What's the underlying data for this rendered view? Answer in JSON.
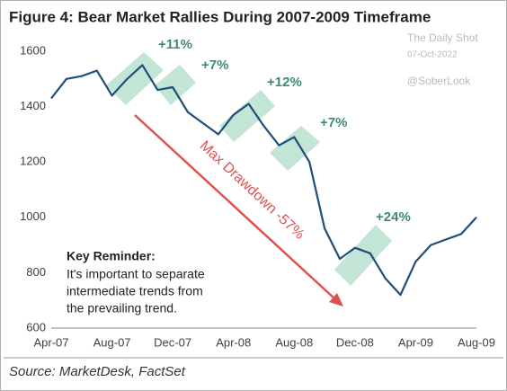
{
  "chart_data": {
    "type": "line",
    "title": "Figure 4: Bear Market Rallies During 2007-2009 Timeframe",
    "watermark": [
      "The Daily Shot",
      "07-Oct-2022",
      "@SoberLook"
    ],
    "source": "Source: MarketDesk, FactSet",
    "categories": [
      "Apr-07",
      null,
      null,
      null,
      "Aug-07",
      null,
      null,
      null,
      "Dec-07",
      null,
      null,
      null,
      "Apr-08",
      null,
      null,
      null,
      "Aug-08",
      null,
      null,
      null,
      "Dec-08",
      null,
      null,
      null,
      "Apr-09",
      null,
      null,
      null,
      "Aug-09"
    ],
    "values": [
      1430,
      1500,
      1510,
      1530,
      1440,
      1500,
      1550,
      1460,
      1470,
      1380,
      1340,
      1300,
      1370,
      1410,
      1330,
      1260,
      1290,
      1200,
      960,
      850,
      890,
      870,
      780,
      720,
      840,
      900,
      920,
      940,
      1000
    ],
    "color": "#1f4e79",
    "ylim": [
      600,
      1600
    ],
    "yticks": [
      600,
      800,
      1000,
      1200,
      1400,
      1600
    ],
    "grid": false,
    "annotations": {
      "rallies": [
        "+11%",
        "+7%",
        "+12%",
        "+7%",
        "+24%"
      ],
      "drawdown": "Max Drawdown -57%",
      "reminder_title": "Key Reminder:",
      "reminder_lines": [
        "It's important to separate",
        "intermediate trends from",
        "the prevailing trend."
      ]
    }
  }
}
